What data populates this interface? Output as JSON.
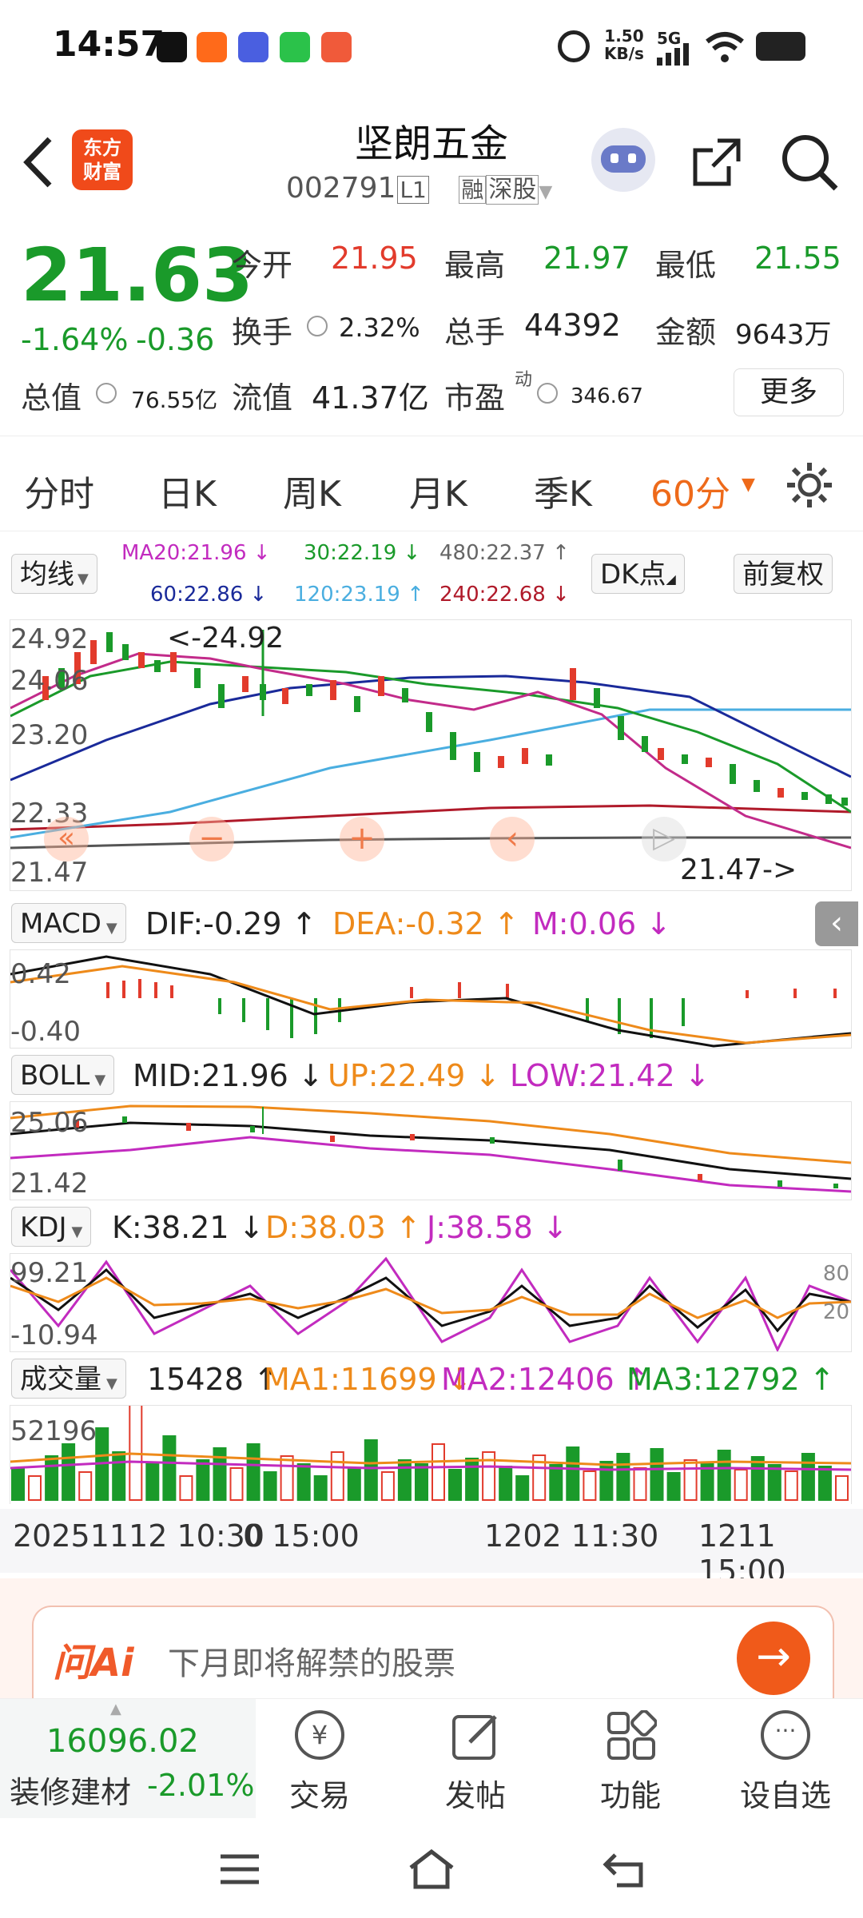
{
  "status_bar": {
    "time": "14:57",
    "net_speed_top": "1.50",
    "net_speed_bottom": "KB/s",
    "signal_label": "5G"
  },
  "header": {
    "brand_logo_text": "东方\n财富",
    "stock_name": "坚朗五金",
    "stock_code": "002791",
    "level_badge": "L1",
    "margin_badge": "融",
    "exchange": "深股"
  },
  "quote": {
    "price": "21.63",
    "change_pct": "-1.64%",
    "change_amt": "-0.36",
    "open_label": "今开",
    "open": "21.95",
    "high_label": "最高",
    "high": "21.97",
    "low_label": "最低",
    "low": "21.55",
    "turnover_label": "换手",
    "turnover": "2.32%",
    "volume_label": "总手",
    "volume": "44392",
    "amount_label": "金额",
    "amount": "9643万",
    "mktcap_label": "总值",
    "mktcap": "76.55亿",
    "float_label": "流值",
    "float_cap": "41.37亿",
    "pe_label": "市盈",
    "pe_sup": "动",
    "pe": "346.67",
    "more_button": "更多"
  },
  "tabs": {
    "items": [
      "分时",
      "日K",
      "周K",
      "月K",
      "季K",
      "60分"
    ],
    "active_index": 5
  },
  "ma_panel": {
    "selector": "均线",
    "ma20": "MA20:21.96",
    "ma30": "30:22.19",
    "ma480": "480:22.37",
    "ma60": "60:22.86",
    "ma120": "120:23.19",
    "ma240": "240:22.68",
    "dk_button": "DK点",
    "restore_button": "前复权",
    "y_labels": [
      "24.92",
      "24.06",
      "23.20",
      "22.33",
      "21.47"
    ],
    "high_marker": "<-24.92",
    "low_marker": "21.47->"
  },
  "macd": {
    "selector": "MACD",
    "dif": "DIF:-0.29",
    "dea": "DEA:-0.32",
    "m": "M:0.06",
    "y_top": "0.42",
    "y_bottom": "-0.40"
  },
  "boll": {
    "selector": "BOLL",
    "mid": "MID:21.96",
    "up": "UP:22.49",
    "low": "LOW:21.42",
    "y_top": "25.06",
    "y_bottom": "21.42"
  },
  "kdj": {
    "selector": "KDJ",
    "k": "K:38.21",
    "d": "D:38.03",
    "j": "J:38.58",
    "y_top": "99.21",
    "y_bottom": "-10.94",
    "right_top": "80",
    "right_bottom": "20"
  },
  "volume": {
    "selector": "成交量",
    "vol": "15428",
    "ma1": "MA1:11699",
    "ma2": "MA2:12406",
    "ma3": "MA3:12792",
    "y_top": "52196"
  },
  "time_axis": {
    "labels": [
      "20251112 10:30",
      "0 15:00",
      "1202 11:30",
      "1211 15:00"
    ]
  },
  "ai_bar": {
    "logo": "问Ai",
    "placeholder": "下月即将解禁的股票"
  },
  "bottom_nav": {
    "index_value": "16096.02",
    "index_name": "装修建材",
    "index_change": "-2.01%",
    "items": [
      "交易",
      "发帖",
      "功能",
      "设自选"
    ]
  },
  "colors": {
    "up": "#e23b2c",
    "down": "#1a9a2a",
    "accent": "#ee6a1a"
  }
}
